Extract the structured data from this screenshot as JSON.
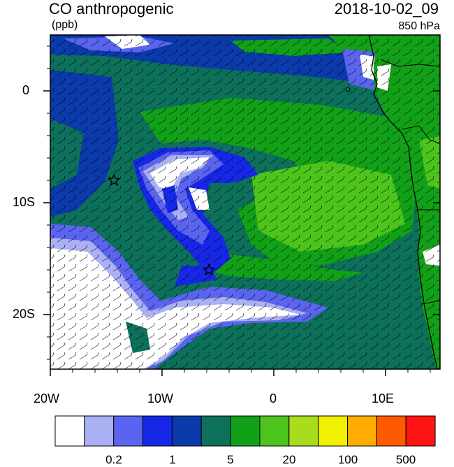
{
  "title": "CO anthropogenic",
  "units": "(ppb)",
  "datetime": "2018-10-02_09",
  "level": "850 hPa",
  "axes": {
    "x_ticks": [
      "20W",
      "10W",
      "0",
      "10E"
    ],
    "y_ticks": [
      "0",
      "10S",
      "20S"
    ]
  },
  "colorbar": {
    "colors": [
      "#ffffff",
      "#aab0f4",
      "#5a64ee",
      "#1628e6",
      "#0b3aaa",
      "#0d705a",
      "#12a018",
      "#4cc41c",
      "#a8dc1c",
      "#f0f000",
      "#ffac00",
      "#ff5a00",
      "#ff1414"
    ],
    "labels": [
      "0.2",
      "1",
      "5",
      "20",
      "100",
      "500"
    ]
  },
  "markers": [
    {
      "name": "star",
      "lon": -14.3,
      "lat": -8.0
    },
    {
      "name": "star",
      "lon": -5.8,
      "lat": -16.0
    }
  ]
}
